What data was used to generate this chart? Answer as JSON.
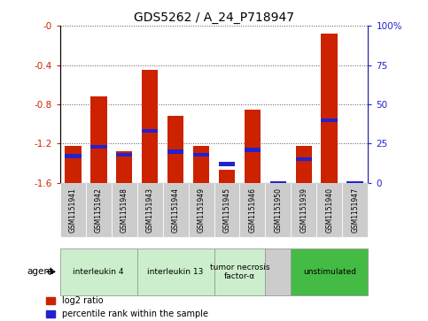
{
  "title": "GDS5262 / A_24_P718947",
  "samples": [
    "GSM1151941",
    "GSM1151942",
    "GSM1151948",
    "GSM1151943",
    "GSM1151944",
    "GSM1151949",
    "GSM1151945",
    "GSM1151946",
    "GSM1151950",
    "GSM1151939",
    "GSM1151940",
    "GSM1151947"
  ],
  "log2_ratio": [
    -1.22,
    -0.72,
    -1.28,
    -0.45,
    -0.92,
    -1.22,
    -1.47,
    -0.85,
    -1.6,
    -1.22,
    -0.08,
    -1.6
  ],
  "percentile_rank": [
    17,
    23,
    18,
    33,
    20,
    18,
    12,
    21,
    0,
    15,
    40,
    0
  ],
  "ylim_left": [
    -1.6,
    0.0
  ],
  "ylim_right": [
    0,
    100
  ],
  "yticks_left": [
    -1.6,
    -1.2,
    -0.8,
    -0.4,
    0.0
  ],
  "yticks_right": [
    0,
    25,
    50,
    75,
    100
  ],
  "ytick_labels_left": [
    "-1.6",
    "-1.2",
    "-0.8",
    "-0.4",
    "-0"
  ],
  "ytick_labels_right": [
    "0",
    "25",
    "50",
    "75",
    "100%"
  ],
  "groups": [
    {
      "label": "interleukin 4",
      "start": 0,
      "end": 3,
      "color": "#cceecc"
    },
    {
      "label": "interleukin 13",
      "start": 3,
      "end": 6,
      "color": "#cceecc"
    },
    {
      "label": "tumor necrosis\nfactor-α",
      "start": 6,
      "end": 8,
      "color": "#cceecc"
    },
    {
      "label": "",
      "start": 8,
      "end": 9,
      "color": "#cccccc"
    },
    {
      "label": "unstimulated",
      "start": 9,
      "end": 12,
      "color": "#44bb44"
    }
  ],
  "agent_label": "agent",
  "bar_color_red": "#cc2200",
  "bar_color_blue": "#2222cc",
  "sample_box_color": "#cccccc",
  "left_axis_color": "#cc2200",
  "right_axis_color": "#2222cc",
  "grid_color": "#555555",
  "fig_bg": "#ffffff"
}
